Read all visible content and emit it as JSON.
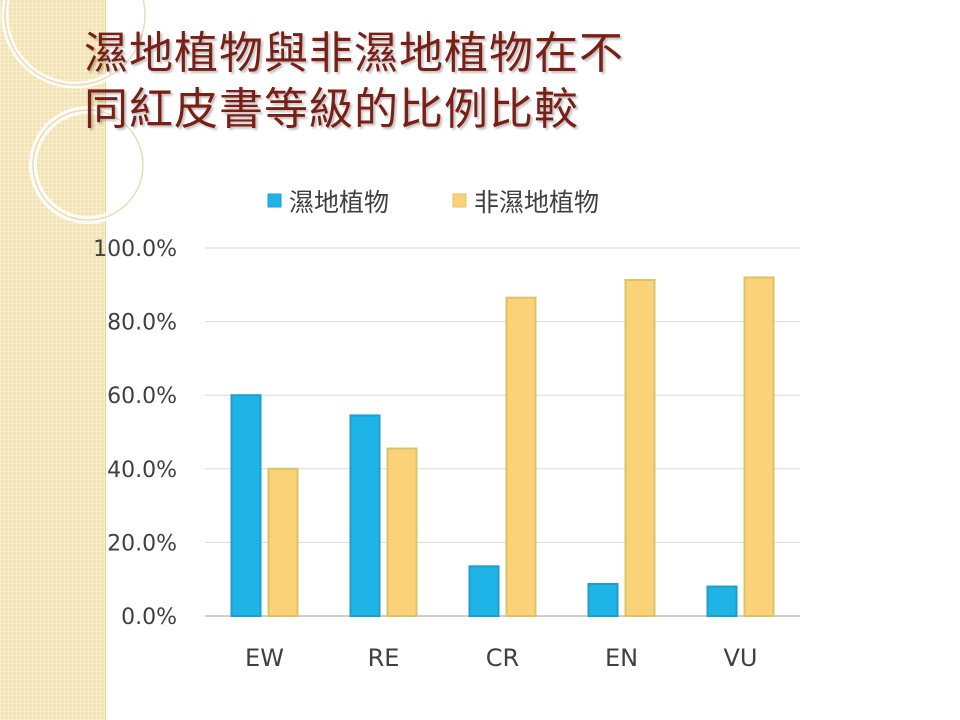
{
  "slide": {
    "title_line1": "濕地植物與非濕地植物在不",
    "title_line2": "同紅皮書等級的比例比較"
  },
  "colors": {
    "wetland": "#1fb4e8",
    "wetland_border": "#1c9fc8",
    "non_wetland": "#fcd278",
    "non_wetland_border": "#d9c464",
    "grid": "#d9d9d9",
    "title": "#7a1f16",
    "panel": "#f3e3b3"
  },
  "chart_data": {
    "type": "bar",
    "categories": [
      "EW",
      "RE",
      "CR",
      "EN",
      "VU"
    ],
    "series": [
      {
        "name": "濕地植物",
        "values": [
          60.0,
          54.5,
          13.5,
          8.7,
          8.0
        ]
      },
      {
        "name": "非濕地植物",
        "values": [
          40.0,
          45.5,
          86.5,
          91.3,
          92.0
        ]
      }
    ],
    "yticks": [
      "0.0%",
      "20.0%",
      "40.0%",
      "60.0%",
      "80.0%",
      "100.0%"
    ],
    "ylim": [
      0,
      100
    ],
    "grid": true,
    "legend_position": "top"
  }
}
